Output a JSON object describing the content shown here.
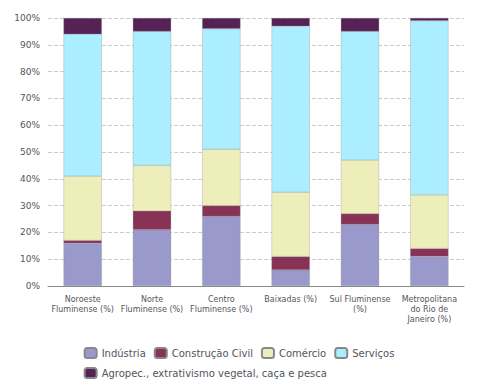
{
  "chart_data": {
    "type": "bar",
    "stacked": true,
    "categories": [
      "Noroeste\nFluminense (%)",
      "Norte\nFluminense (%)",
      "Centro\nFluminense (%)",
      "Baixadas (%)",
      "Sul Fluminense\n(%)",
      "Metropolitana\ndo Rio de\nJaneiro (%)"
    ],
    "series": [
      {
        "name": "Indústria",
        "color": "#9999cc",
        "values": [
          16,
          21,
          26,
          6,
          23,
          11
        ]
      },
      {
        "name": "Construção Civil",
        "color": "#883355",
        "values": [
          1,
          7,
          4,
          5,
          4,
          3
        ]
      },
      {
        "name": "Comércio",
        "color": "#eeeebb",
        "values": [
          24,
          17,
          21,
          24,
          20,
          20
        ]
      },
      {
        "name": "Serviços",
        "color": "#aaeeff",
        "values": [
          53,
          50,
          45,
          62,
          48,
          65
        ]
      },
      {
        "name": "Agropec., extrativismo vegetal, caça e pesca",
        "color": "#552255",
        "values": [
          6,
          5,
          4,
          3,
          5,
          1
        ]
      }
    ],
    "ylim": [
      0,
      100
    ],
    "yticks": [
      {
        "value": 0,
        "label": "0%"
      },
      {
        "value": 10,
        "label": "10%"
      },
      {
        "value": 20,
        "label": "20%"
      },
      {
        "value": 30,
        "label": "30%"
      },
      {
        "value": 40,
        "label": "40%"
      },
      {
        "value": 50,
        "label": "50%"
      },
      {
        "value": 60,
        "label": "60%"
      },
      {
        "value": 70,
        "label": "70%"
      },
      {
        "value": 80,
        "label": "80%"
      },
      {
        "value": 90,
        "label": "90%"
      },
      {
        "value": 100,
        "label": "100%"
      }
    ],
    "grid": true,
    "legend": "bottom"
  }
}
